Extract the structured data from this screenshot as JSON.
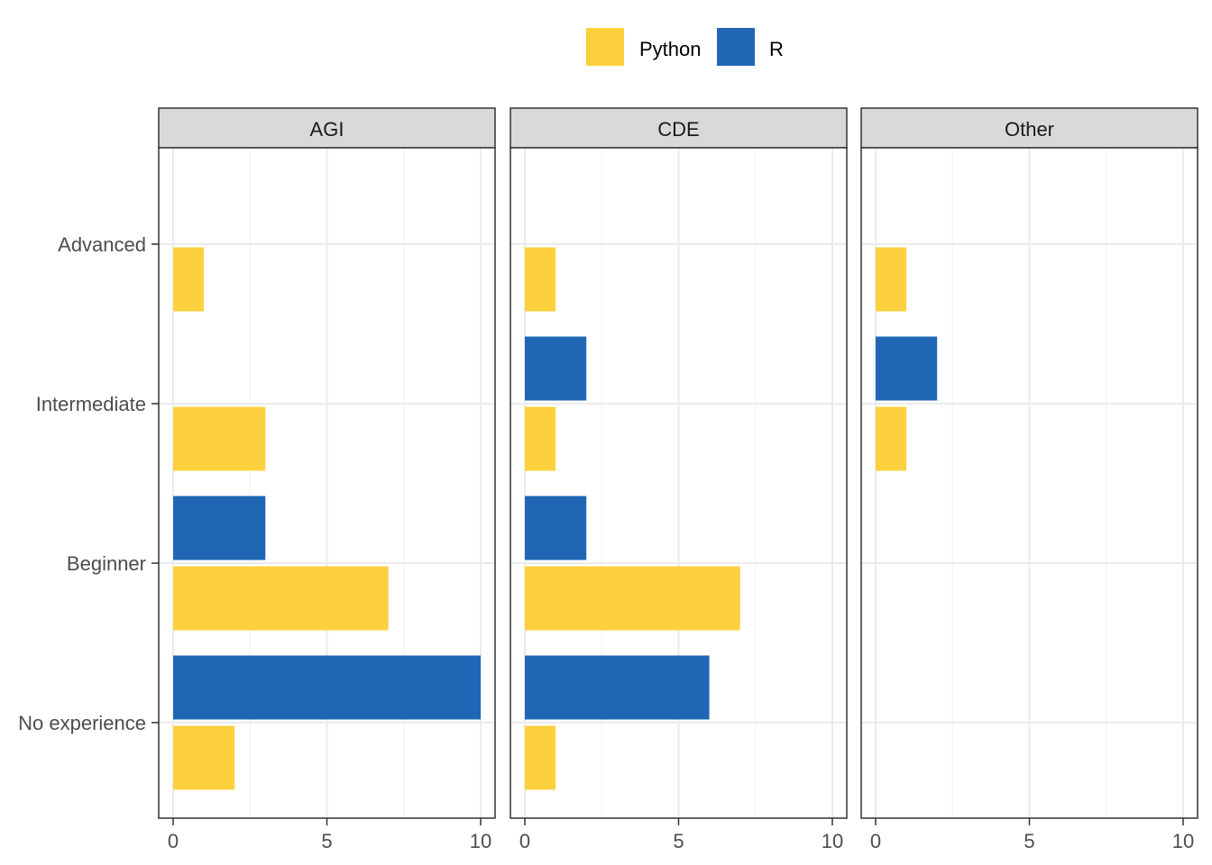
{
  "chart_data": {
    "type": "bar",
    "orientation": "horizontal",
    "facet_by": "panel",
    "panels": [
      "AGI",
      "CDE",
      "Other"
    ],
    "categories": [
      "Advanced",
      "Intermediate",
      "Beginner",
      "No experience"
    ],
    "legend": {
      "placement": "top",
      "items": [
        {
          "name": "Python",
          "color": "#FDD13E"
        },
        {
          "name": "R",
          "color": "#1F67B5"
        }
      ]
    },
    "xlim": [
      0,
      10
    ],
    "x_ticks": [
      0,
      5,
      10
    ],
    "grid": true,
    "xlabel": "",
    "ylabel": "",
    "series": [
      {
        "name": "Python",
        "values": {
          "AGI": [
            1,
            3,
            7,
            2
          ],
          "CDE": [
            1,
            1,
            7,
            1
          ],
          "Other": [
            1,
            1,
            null,
            null
          ]
        }
      },
      {
        "name": "R",
        "values": {
          "AGI": [
            null,
            null,
            3,
            10
          ],
          "CDE": [
            null,
            2,
            2,
            6
          ],
          "Other": [
            null,
            2,
            null,
            null
          ]
        }
      }
    ]
  }
}
